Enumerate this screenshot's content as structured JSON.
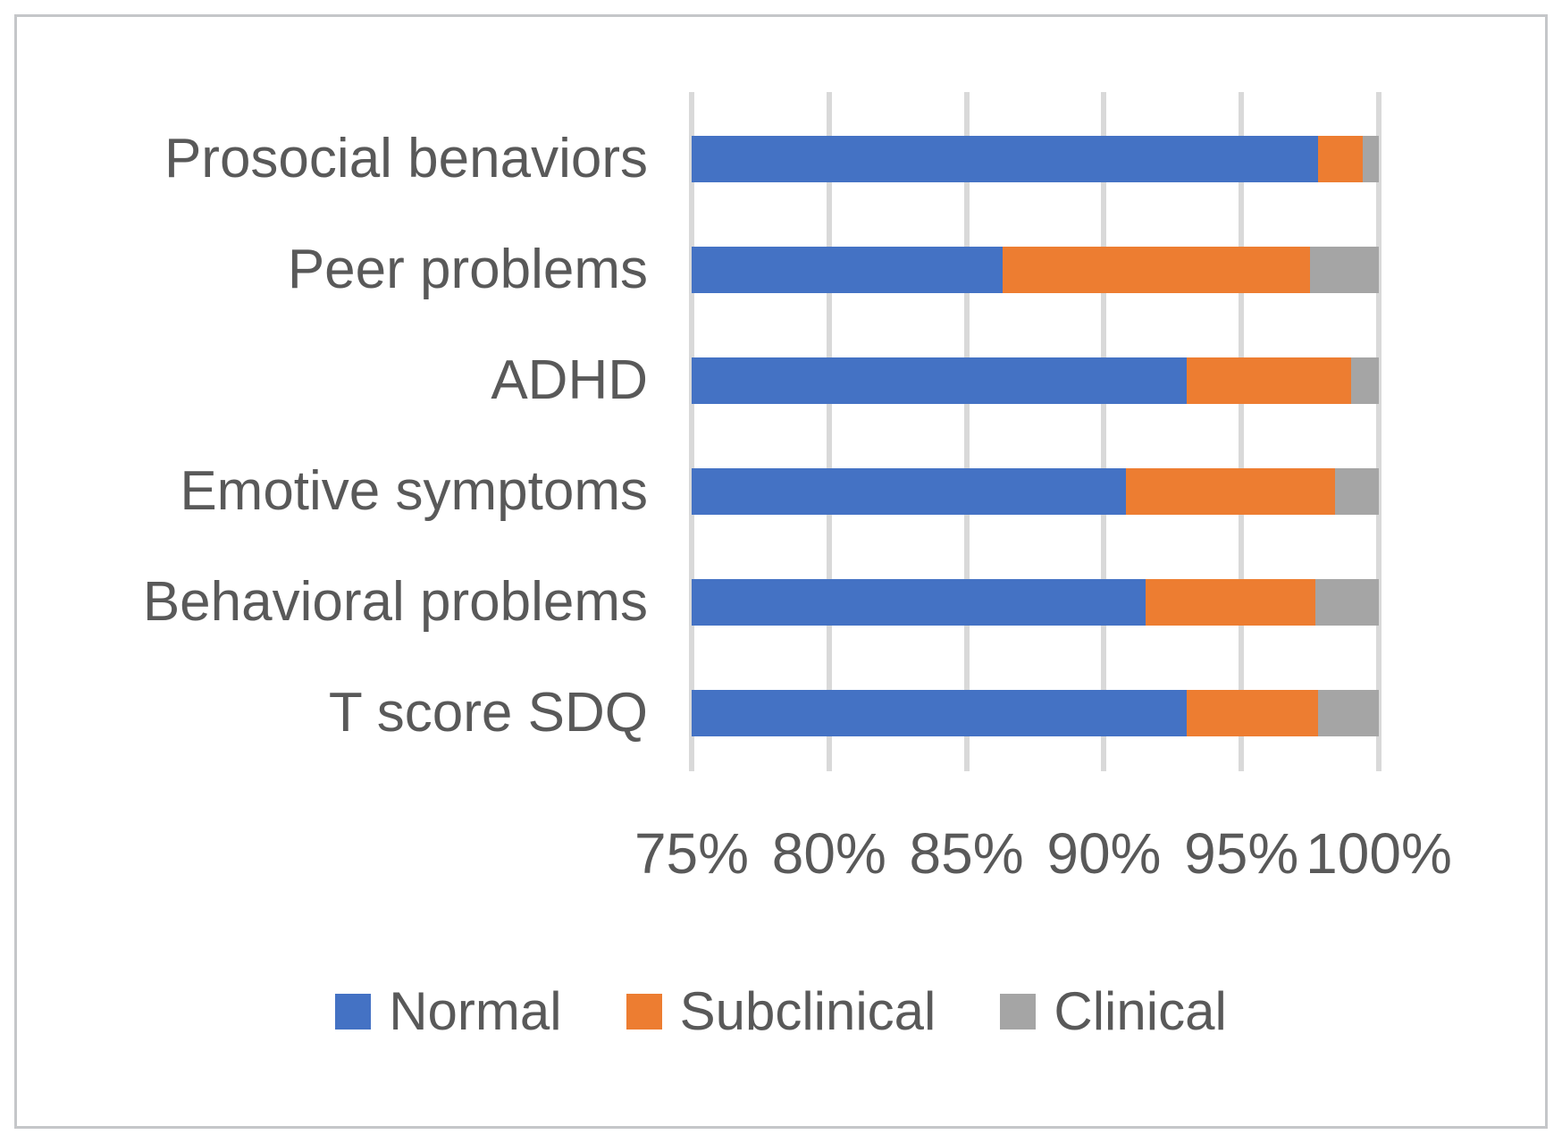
{
  "chart_data": {
    "type": "bar",
    "orientation": "horizontal",
    "stacked": true,
    "stacked_100_percent": true,
    "categories": [
      "Prosocial benaviors",
      "Peer problems",
      "ADHD",
      "Emotive symptoms",
      "Behavioral problems",
      "T score SDQ"
    ],
    "series": [
      {
        "name": "Normal",
        "color": "#4472C4",
        "values": [
          97.8,
          86.3,
          93.0,
          90.8,
          91.5,
          93.0
        ]
      },
      {
        "name": "Subclinical",
        "color": "#ED7D31",
        "values": [
          1.6,
          11.2,
          6.0,
          7.6,
          6.2,
          4.8
        ]
      },
      {
        "name": "Clinical",
        "color": "#A5A5A5",
        "values": [
          0.6,
          2.5,
          1.0,
          1.6,
          2.3,
          2.2
        ]
      }
    ],
    "xlim": [
      75,
      100
    ],
    "x_tick_values": [
      75,
      80,
      85,
      90,
      95,
      100
    ],
    "x_tick_labels": [
      "75%",
      "80%",
      "85%",
      "90%",
      "95%",
      "100%"
    ],
    "grid": true,
    "legend_position": "bottom",
    "title": "",
    "xlabel": "",
    "ylabel": ""
  },
  "colors": {
    "gridline": "#d9d9d9",
    "text": "#595959",
    "frame_border": "#c5c7c9",
    "background": "#ffffff"
  }
}
